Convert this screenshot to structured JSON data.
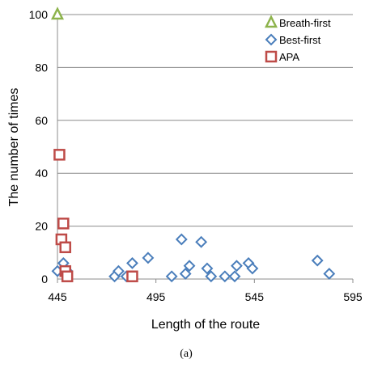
{
  "chart_data": {
    "type": "scatter",
    "title": "",
    "xlabel": "Length of the route",
    "ylabel": "The number of times",
    "caption": "(a)",
    "xlim": [
      445,
      595
    ],
    "ylim": [
      0,
      100
    ],
    "xticks": [
      445,
      495,
      545,
      595
    ],
    "yticks": [
      0,
      20,
      40,
      60,
      80,
      100
    ],
    "grid": "horizontal",
    "legend_position": "top-right",
    "series": [
      {
        "name": "Breath-first",
        "marker": "triangle",
        "color": "#8db34c",
        "points": [
          [
            445,
            100
          ]
        ]
      },
      {
        "name": "Best-first",
        "marker": "diamond",
        "color": "#4a7ebb",
        "points": [
          [
            445,
            3
          ],
          [
            448,
            6
          ],
          [
            450,
            3
          ],
          [
            474,
            1
          ],
          [
            476,
            3
          ],
          [
            480,
            1
          ],
          [
            483,
            6
          ],
          [
            491,
            8
          ],
          [
            503,
            1
          ],
          [
            508,
            15
          ],
          [
            510,
            2
          ],
          [
            512,
            5
          ],
          [
            518,
            14
          ],
          [
            521,
            4
          ],
          [
            523,
            1
          ],
          [
            530,
            1
          ],
          [
            535,
            1
          ],
          [
            536,
            5
          ],
          [
            542,
            6
          ],
          [
            544,
            4
          ],
          [
            577,
            7
          ],
          [
            583,
            2
          ]
        ]
      },
      {
        "name": "APA",
        "marker": "square",
        "color": "#be4b48",
        "points": [
          [
            446,
            47
          ],
          [
            448,
            21
          ],
          [
            447,
            15
          ],
          [
            449,
            12
          ],
          [
            449,
            3
          ],
          [
            450,
            1
          ],
          [
            483,
            1
          ]
        ]
      }
    ]
  }
}
